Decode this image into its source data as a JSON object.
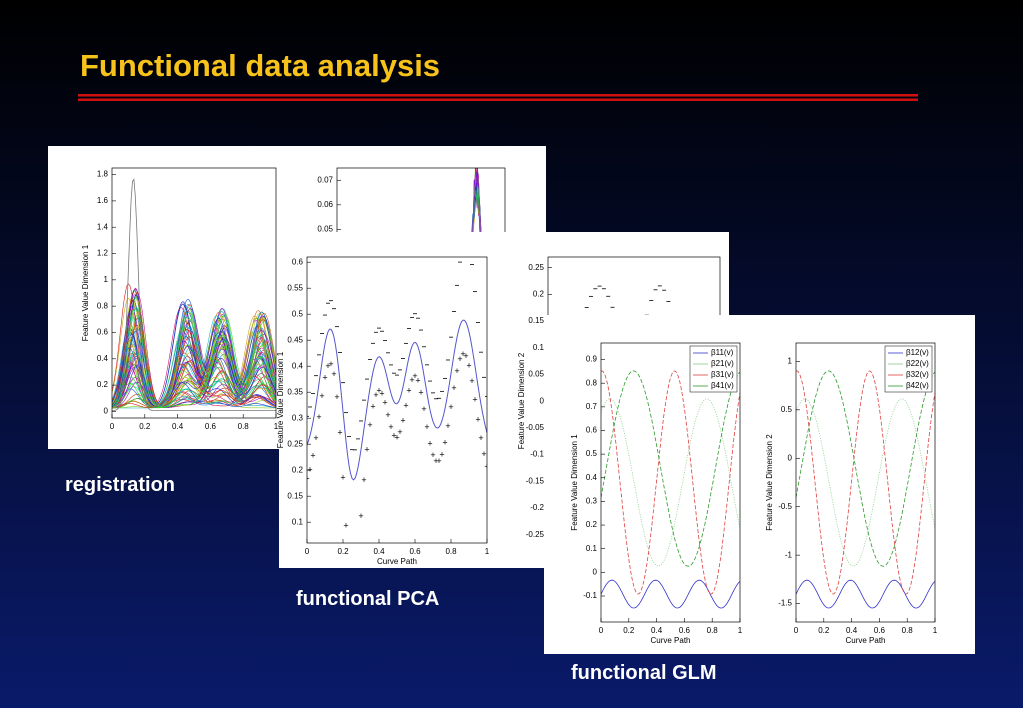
{
  "header": {
    "title": "Functional data analysis"
  },
  "figures": [
    {
      "caption": "registration",
      "plots": [
        {
          "ylabel": "Feature Value Dimension 1",
          "xlim": [
            0,
            1
          ],
          "ylim": [
            -0.05,
            1.85
          ],
          "xticks": [
            0,
            0.2,
            0.4,
            0.6,
            0.8,
            1
          ],
          "yticks": [
            0,
            0.2,
            0.4,
            0.6,
            0.8,
            1,
            1.2,
            1.4,
            1.6,
            1.8
          ]
        },
        {
          "ylim": [
            0.02,
            0.075
          ],
          "yticks": [
            0.05,
            0.06,
            0.07
          ]
        }
      ]
    },
    {
      "caption": "functional PCA",
      "plots": [
        {
          "ylabel": "Feature Value Dimension 1",
          "xlabel": "Curve Path",
          "xlim": [
            0,
            1
          ],
          "ylim": [
            0.06,
            0.61
          ],
          "xticks": [
            0,
            0.2,
            0.4,
            0.6,
            0.8,
            1
          ],
          "yticks": [
            0.1,
            0.15,
            0.2,
            0.25,
            0.3,
            0.35,
            0.4,
            0.45,
            0.5,
            0.55,
            0.6
          ]
        },
        {
          "ylabel": "Feature Value Dimension 2",
          "ylim": [
            -0.275,
            0.27
          ],
          "yticks": [
            -0.25,
            -0.2,
            -0.15,
            -0.1,
            -0.05,
            0,
            0.05,
            0.1,
            0.15,
            0.2,
            0.25
          ]
        }
      ]
    },
    {
      "caption": "functional GLM",
      "plots": [
        {
          "ylabel": "Feature Value Dimension 1",
          "xlabel": "Curve Path",
          "xlim": [
            0,
            1
          ],
          "ylim": [
            -0.21,
            0.97
          ],
          "xticks": [
            0,
            0.2,
            0.4,
            0.6,
            0.8,
            1
          ],
          "yticks": [
            -0.1,
            0,
            0.1,
            0.2,
            0.3,
            0.4,
            0.5,
            0.6,
            0.7,
            0.8,
            0.9
          ],
          "legend": [
            {
              "name": "β11(v)",
              "color": "#3333cc"
            },
            {
              "name": "β21(v)",
              "color": "#88cc88"
            },
            {
              "name": "β31(v)",
              "color": "#e04040"
            },
            {
              "name": "β41(v)",
              "color": "#2a9a2a"
            }
          ]
        },
        {
          "ylabel": "Feature Value Dimension 2",
          "xlabel": "Curve Path",
          "xlim": [
            0,
            1
          ],
          "ylim": [
            -1.69,
            1.19
          ],
          "xticks": [
            0,
            0.2,
            0.4,
            0.6,
            0.8,
            1
          ],
          "yticks": [
            -1.5,
            -1,
            -0.5,
            0,
            0.5,
            1
          ],
          "legend": [
            {
              "name": "β12(v)",
              "color": "#3333cc"
            },
            {
              "name": "β22(v)",
              "color": "#88cc88"
            },
            {
              "name": "β32(v)",
              "color": "#e04040"
            },
            {
              "name": "β42(v)",
              "color": "#2a9a2a"
            }
          ]
        }
      ]
    }
  ]
}
